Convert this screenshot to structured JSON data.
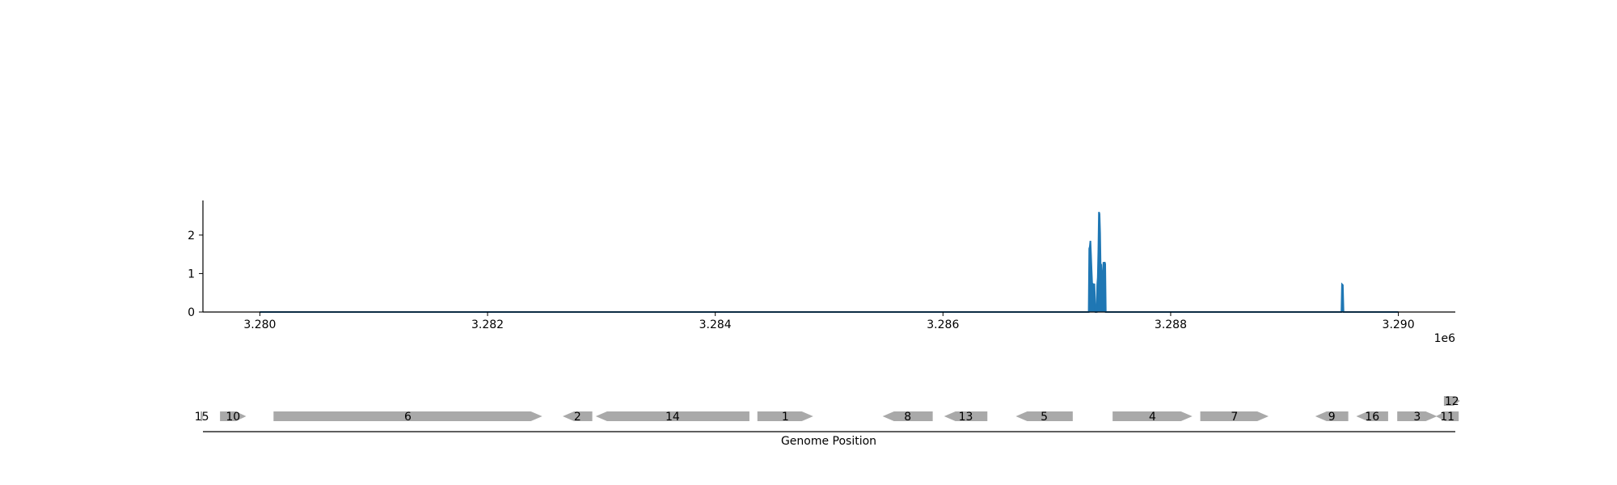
{
  "chart_data": [
    {
      "type": "area",
      "x_offset_label": "1e6",
      "xlim": [
        3279500,
        3290500
      ],
      "ylim": [
        0,
        2.9
      ],
      "x_ticks": [
        3280000,
        3282000,
        3284000,
        3286000,
        3288000,
        3290000
      ],
      "x_tick_labels": [
        "3.280",
        "3.282",
        "3.284",
        "3.286",
        "3.288",
        "3.290"
      ],
      "y_ticks": [
        0,
        1,
        2
      ],
      "y_tick_labels": [
        "0",
        "1",
        "2"
      ],
      "grid": false,
      "series": [
        {
          "color": "#1f77b4",
          "points": [
            [
              3280000,
              0
            ],
            [
              3287280,
              0
            ],
            [
              3287285,
              1.65
            ],
            [
              3287290,
              1.7
            ],
            [
              3287295,
              1.85
            ],
            [
              3287300,
              1.5
            ],
            [
              3287305,
              1.1
            ],
            [
              3287310,
              0.75
            ],
            [
              3287320,
              0.72
            ],
            [
              3287330,
              0.72
            ],
            [
              3287340,
              0
            ],
            [
              3287350,
              0
            ],
            [
              3287355,
              0.7
            ],
            [
              3287360,
              0.9
            ],
            [
              3287365,
              1.6
            ],
            [
              3287370,
              2.6
            ],
            [
              3287375,
              2.55
            ],
            [
              3287380,
              2.05
            ],
            [
              3287385,
              1.1
            ],
            [
              3287390,
              1.25
            ],
            [
              3287395,
              0.8
            ],
            [
              3287400,
              0.7
            ],
            [
              3287405,
              1.0
            ],
            [
              3287410,
              1.3
            ],
            [
              3287415,
              1.2
            ],
            [
              3287420,
              1.3
            ],
            [
              3287425,
              1.25
            ],
            [
              3287430,
              0
            ],
            [
              3289500,
              0
            ],
            [
              3289505,
              0.72
            ],
            [
              3289512,
              0.7
            ],
            [
              3289518,
              0
            ],
            [
              3290000,
              0
            ]
          ]
        }
      ]
    },
    {
      "type": "gene_track",
      "xlabel": "Genome Position",
      "gene_color": "#a9a9a9",
      "genes": [
        {
          "label": "15",
          "start": 3279480,
          "end": 3279500,
          "strand": "+",
          "row": 0
        },
        {
          "label": "10",
          "start": 3279650,
          "end": 3279880,
          "strand": "+",
          "row": 0
        },
        {
          "label": "6",
          "start": 3280120,
          "end": 3282480,
          "strand": "+",
          "row": 0
        },
        {
          "label": "2",
          "start": 3282660,
          "end": 3282920,
          "strand": "-",
          "row": 0
        },
        {
          "label": "14",
          "start": 3282950,
          "end": 3284300,
          "strand": "-",
          "row": 0
        },
        {
          "label": "1",
          "start": 3284370,
          "end": 3284860,
          "strand": "+",
          "row": 0
        },
        {
          "label": "8",
          "start": 3285470,
          "end": 3285910,
          "strand": "-",
          "row": 0
        },
        {
          "label": "13",
          "start": 3286010,
          "end": 3286390,
          "strand": "-",
          "row": 0
        },
        {
          "label": "5",
          "start": 3286640,
          "end": 3287140,
          "strand": "-",
          "row": 0
        },
        {
          "label": "4",
          "start": 3287490,
          "end": 3288190,
          "strand": "+",
          "row": 0
        },
        {
          "label": "7",
          "start": 3288260,
          "end": 3288860,
          "strand": "+",
          "row": 0
        },
        {
          "label": "9",
          "start": 3289270,
          "end": 3289560,
          "strand": "-",
          "row": 0
        },
        {
          "label": "16",
          "start": 3289630,
          "end": 3289910,
          "strand": "-",
          "row": 0
        },
        {
          "label": "3",
          "start": 3289990,
          "end": 3290340,
          "strand": "+",
          "row": 0
        },
        {
          "label": "11",
          "start": 3290330,
          "end": 3290530,
          "strand": "-",
          "row": 0
        },
        {
          "label": "12",
          "start": 3290400,
          "end": 3290540,
          "strand": "+",
          "row": 1
        }
      ]
    }
  ]
}
